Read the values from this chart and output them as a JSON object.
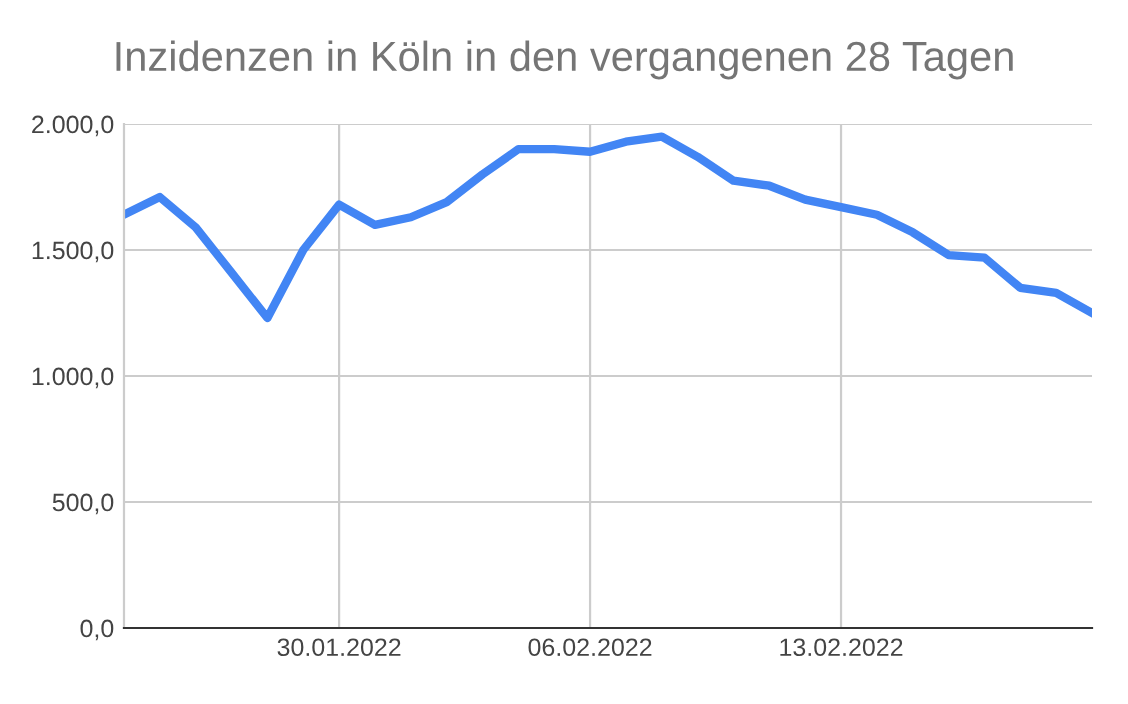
{
  "chart_data": {
    "type": "line",
    "title": "Inzidenzen in Köln in den vergangenen 28 Tagen",
    "x": [
      "2022-01-24",
      "2022-01-25",
      "2022-01-26",
      "2022-01-27",
      "2022-01-28",
      "2022-01-29",
      "2022-01-30",
      "2022-01-31",
      "2022-02-01",
      "2022-02-02",
      "2022-02-03",
      "2022-02-04",
      "2022-02-05",
      "2022-02-06",
      "2022-02-07",
      "2022-02-08",
      "2022-02-09",
      "2022-02-10",
      "2022-02-11",
      "2022-02-12",
      "2022-02-13",
      "2022-02-14",
      "2022-02-15",
      "2022-02-16",
      "2022-02-17",
      "2022-02-18",
      "2022-02-19",
      "2022-02-20"
    ],
    "series": [
      {
        "color": "#4285f4",
        "values": [
          1640,
          1710,
          1590,
          1410,
          1230,
          1500,
          1680,
          1600,
          1630,
          1690,
          1800,
          1900,
          1900,
          1890,
          1930,
          1950,
          1870,
          1775,
          1755,
          1700,
          1670,
          1640,
          1570,
          1480,
          1470,
          1350,
          1330,
          1250
        ]
      }
    ],
    "xlim": [
      "2022-01-24",
      "2022-02-20"
    ],
    "xticks": [
      {
        "value": "2022-01-30",
        "label": "30.01.2022"
      },
      {
        "value": "2022-02-06",
        "label": "06.02.2022"
      },
      {
        "value": "2022-02-13",
        "label": "13.02.2022"
      }
    ],
    "ylim": [
      0,
      2000
    ],
    "yticks": [
      {
        "value": 0,
        "label": "0,0"
      },
      {
        "value": 500,
        "label": "500,0"
      },
      {
        "value": 1000,
        "label": "1.000,0"
      },
      {
        "value": 1500,
        "label": "1.500,0"
      },
      {
        "value": 2000,
        "label": "2.000,0"
      }
    ],
    "grid": true,
    "marker": "none",
    "line_style": "solid",
    "legend": false
  }
}
